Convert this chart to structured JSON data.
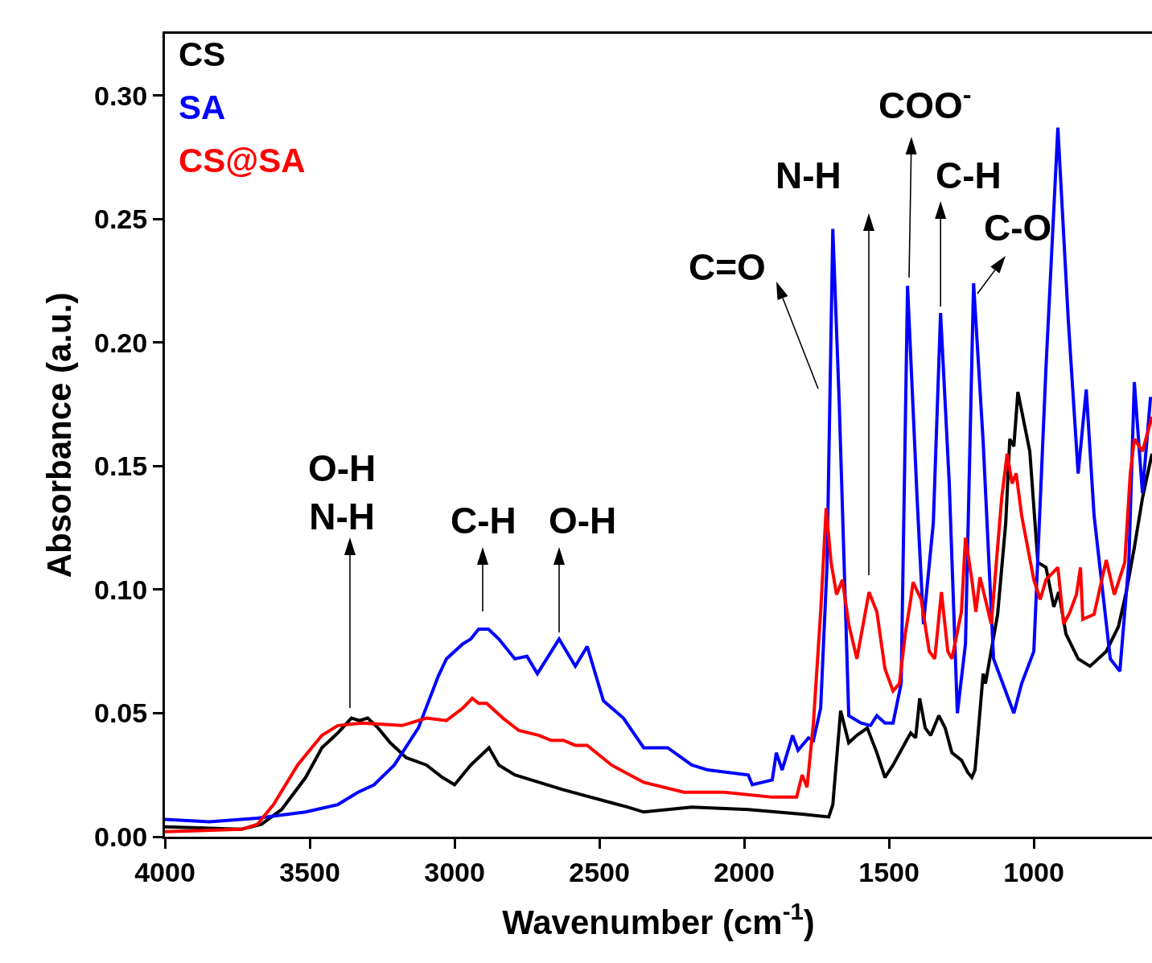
{
  "chart_data": {
    "type": "line",
    "xlabel": "Wavenumber (cm$^{-1}$)",
    "ylabel": "Absorbance (a.u.)",
    "xlim": [
      4000,
      592
    ],
    "xticks": [
      4000,
      3500,
      3000,
      2500,
      2000,
      1500,
      1000
    ],
    "ylim": [
      0,
      0.325
    ],
    "yticks": [
      {
        "value": 0,
        "label": "0.00"
      },
      {
        "value": 0.05,
        "label": "0.05"
      },
      {
        "value": 0.1,
        "label": "0.10"
      },
      {
        "value": 0.15,
        "label": "0.15"
      },
      {
        "value": 0.2,
        "label": "0.20"
      },
      {
        "value": 0.25,
        "label": "0.25"
      },
      {
        "value": 0.3,
        "label": "0.30"
      }
    ],
    "grid": false,
    "legend": "top left",
    "marker": "none",
    "line_style": "solid",
    "series": [
      {
        "name": "CS",
        "color": "#000000",
        "x": [
          4000,
          3736,
          3667,
          3597,
          3514,
          3458,
          3403,
          3356,
          3328,
          3300,
          3264,
          3222,
          3167,
          3097,
          3042,
          3000,
          2944,
          2917,
          2881,
          2847,
          2792,
          2625,
          2403,
          2347,
          2181,
          1986,
          1792,
          1708,
          1694,
          1667,
          1639,
          1611,
          1575,
          1542,
          1514,
          1486,
          1444,
          1425,
          1408,
          1394,
          1375,
          1356,
          1328,
          1306,
          1283,
          1250,
          1228,
          1214,
          1203,
          1175,
          1167,
          1125,
          1097,
          1083,
          1069,
          1055,
          1014,
          986,
          958,
          931,
          914,
          889,
          847,
          806,
          750,
          708,
          681,
          653,
          625,
          592
        ],
        "values": [
          0.004,
          0.003,
          0.005,
          0.011,
          0.024,
          0.036,
          0.042,
          0.048,
          0.047,
          0.048,
          0.044,
          0.038,
          0.032,
          0.029,
          0.024,
          0.021,
          0.029,
          0.032,
          0.036,
          0.029,
          0.025,
          0.019,
          0.012,
          0.01,
          0.012,
          0.011,
          0.009,
          0.008,
          0.013,
          0.051,
          0.038,
          0.041,
          0.044,
          0.034,
          0.024,
          0.029,
          0.038,
          0.042,
          0.04,
          0.056,
          0.044,
          0.041,
          0.049,
          0.044,
          0.034,
          0.031,
          0.026,
          0.024,
          0.027,
          0.066,
          0.062,
          0.09,
          0.127,
          0.161,
          0.158,
          0.18,
          0.156,
          0.111,
          0.109,
          0.093,
          0.099,
          0.082,
          0.072,
          0.069,
          0.075,
          0.085,
          0.099,
          0.117,
          0.137,
          0.155
        ]
      },
      {
        "name": "SA",
        "color": "#0000ff",
        "x": [
          4000,
          3847,
          3681,
          3514,
          3403,
          3333,
          3278,
          3208,
          3125,
          3056,
          3028,
          2972,
          2944,
          2917,
          2883,
          2847,
          2792,
          2750,
          2714,
          2639,
          2583,
          2542,
          2486,
          2417,
          2347,
          2264,
          2181,
          2125,
          1986,
          1972,
          1903,
          1889,
          1869,
          1833,
          1814,
          1778,
          1761,
          1736,
          1714,
          1694,
          1672,
          1639,
          1597,
          1564,
          1542,
          1514,
          1486,
          1458,
          1436,
          1403,
          1381,
          1347,
          1322,
          1292,
          1264,
          1236,
          1208,
          1175,
          1139,
          1069,
          1042,
          1000,
          958,
          917,
          881,
          847,
          819,
          792,
          736,
          703,
          672,
          653,
          625,
          597
        ],
        "values": [
          0.007,
          0.006,
          0.0075,
          0.01,
          0.013,
          0.018,
          0.021,
          0.029,
          0.044,
          0.065,
          0.072,
          0.078,
          0.08,
          0.084,
          0.084,
          0.08,
          0.072,
          0.073,
          0.066,
          0.08,
          0.069,
          0.077,
          0.055,
          0.048,
          0.036,
          0.036,
          0.029,
          0.027,
          0.025,
          0.021,
          0.023,
          0.034,
          0.027,
          0.041,
          0.035,
          0.04,
          0.039,
          0.052,
          0.11,
          0.246,
          0.176,
          0.049,
          0.046,
          0.045,
          0.049,
          0.046,
          0.046,
          0.062,
          0.223,
          0.137,
          0.086,
          0.127,
          0.212,
          0.143,
          0.05,
          0.078,
          0.224,
          0.16,
          0.072,
          0.05,
          0.062,
          0.075,
          0.19,
          0.287,
          0.209,
          0.147,
          0.181,
          0.13,
          0.072,
          0.067,
          0.111,
          0.184,
          0.139,
          0.178
        ]
      },
      {
        "name": "CS@SA",
        "color": "#ff0000",
        "x": [
          4000,
          3736,
          3681,
          3625,
          3542,
          3458,
          3403,
          3319,
          3181,
          3097,
          3028,
          2972,
          2939,
          2917,
          2889,
          2833,
          2778,
          2708,
          2667,
          2625,
          2583,
          2542,
          2458,
          2347,
          2208,
          2069,
          1903,
          1819,
          1800,
          1783,
          1761,
          1736,
          1717,
          1700,
          1681,
          1661,
          1639,
          1611,
          1569,
          1542,
          1514,
          1486,
          1464,
          1444,
          1425,
          1417,
          1389,
          1361,
          1342,
          1319,
          1297,
          1283,
          1250,
          1236,
          1214,
          1200,
          1186,
          1167,
          1147,
          1111,
          1092,
          1075,
          1061,
          1042,
          1000,
          978,
          958,
          917,
          897,
          875,
          853,
          839,
          831,
          792,
          750,
          722,
          686,
          667,
          653,
          625,
          592
        ],
        "values": [
          0.002,
          0.003,
          0.005,
          0.013,
          0.029,
          0.041,
          0.045,
          0.046,
          0.045,
          0.048,
          0.047,
          0.052,
          0.056,
          0.054,
          0.054,
          0.048,
          0.043,
          0.041,
          0.039,
          0.039,
          0.037,
          0.037,
          0.029,
          0.022,
          0.018,
          0.018,
          0.016,
          0.016,
          0.025,
          0.02,
          0.046,
          0.091,
          0.133,
          0.111,
          0.098,
          0.104,
          0.086,
          0.072,
          0.099,
          0.091,
          0.068,
          0.059,
          0.062,
          0.082,
          0.096,
          0.103,
          0.096,
          0.075,
          0.072,
          0.099,
          0.075,
          0.072,
          0.091,
          0.121,
          0.104,
          0.091,
          0.105,
          0.096,
          0.086,
          0.137,
          0.155,
          0.143,
          0.147,
          0.13,
          0.104,
          0.096,
          0.104,
          0.109,
          0.086,
          0.091,
          0.098,
          0.109,
          0.088,
          0.09,
          0.112,
          0.098,
          0.111,
          0.147,
          0.161,
          0.156,
          0.17
        ]
      }
    ],
    "annotations": [
      "O-H\nN-H",
      "C-H",
      {
        "text": "O-H",
        "x": 2639,
        "y": 0.08
      },
      "C=O",
      "N-H",
      "COO$^{-}$",
      {
        "text": "C-H",
        "x": 1322,
        "y": 0.212
      },
      "C-O"
    ]
  }
}
